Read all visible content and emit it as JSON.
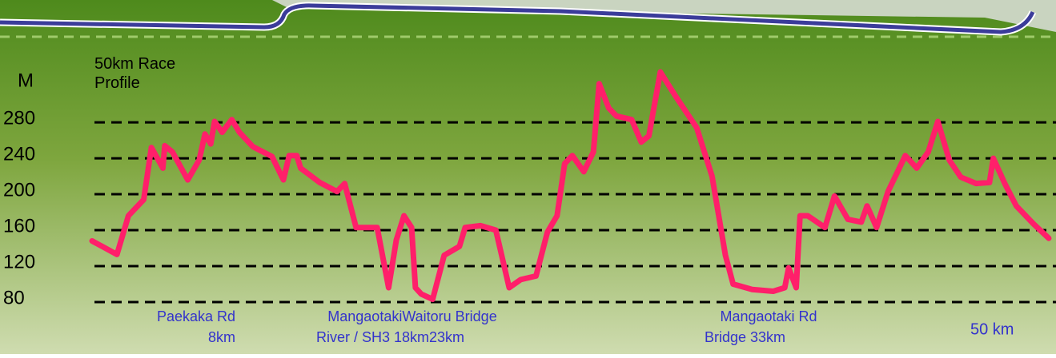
{
  "chart_data": {
    "type": "line",
    "title": "50km Race Profile",
    "y_label": "M",
    "x_label": "50 km",
    "color": "#ff1f6a",
    "grid": true,
    "xlim": [
      0,
      50
    ],
    "ylim": [
      80,
      345
    ],
    "yticks": [
      280,
      240,
      200,
      160,
      120,
      80
    ],
    "x": [
      0,
      1.3,
      1.9,
      2.7,
      3.1,
      3.7,
      3.8,
      4.2,
      5.0,
      5.6,
      5.9,
      6.2,
      6.4,
      6.8,
      7.3,
      7.7,
      8.4,
      9.4,
      10.0,
      10.3,
      10.7,
      10.9,
      11.9,
      12.8,
      13.2,
      13.8,
      14.9,
      15.5,
      15.9,
      16.3,
      16.7,
      16.9,
      17.2,
      17.8,
      18.4,
      19.2,
      19.5,
      20.3,
      21.1,
      21.8,
      22.4,
      23.2,
      23.8,
      24.3,
      24.7,
      25.1,
      25.7,
      26.2,
      26.5,
      27.0,
      27.4,
      28.2,
      28.7,
      29.1,
      29.7,
      30.5,
      31.6,
      32.4,
      33.1,
      33.5,
      34.5,
      35.6,
      36.2,
      36.4,
      36.8,
      37.0,
      37.4,
      38.3,
      38.8,
      39.5,
      40.2,
      40.5,
      41.0,
      41.6,
      42.5,
      43.1,
      43.7,
      44.2,
      44.8,
      45.4,
      46.2,
      46.9,
      47.1,
      47.7,
      48.3,
      49.2,
      50.0
    ],
    "values": [
      148,
      133,
      176,
      194,
      252,
      229,
      254,
      247,
      216,
      238,
      267,
      256,
      281,
      269,
      283,
      269,
      253,
      242,
      216,
      243,
      243,
      229,
      213,
      203,
      212,
      163,
      163,
      96,
      149,
      176,
      163,
      96,
      89,
      83,
      132,
      142,
      163,
      165,
      160,
      96,
      105,
      109,
      158,
      176,
      234,
      243,
      225,
      247,
      323,
      296,
      287,
      283,
      258,
      265,
      336,
      309,
      274,
      220,
      132,
      100,
      94,
      92,
      96,
      118,
      96,
      176,
      176,
      163,
      198,
      172,
      169,
      187,
      163,
      203,
      243,
      229,
      247,
      281,
      238,
      219,
      212,
      213,
      240,
      212,
      187,
      167,
      151
    ],
    "annotations": [
      [
        "Paekaka Rd",
        "8km"
      ],
      [
        "MangaotakiWaitoru Bridge",
        "River / SH3 18km23km"
      ],
      [
        "Mangaotaki Rd",
        "Bridge 33km"
      ]
    ]
  }
}
